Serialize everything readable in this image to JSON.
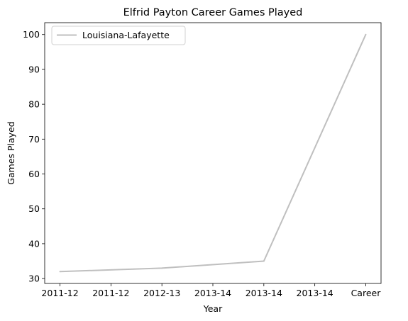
{
  "chart_data": {
    "type": "line",
    "title": "Elfrid Payton  Career Games Played",
    "xlabel": "Year",
    "ylabel": "Games Played",
    "x_tick_labels": [
      "2011-12",
      "2011-12",
      "2012-13",
      "2013-14",
      "2013-14",
      "2013-14",
      "Career"
    ],
    "y_ticks": [
      30,
      40,
      50,
      60,
      70,
      80,
      90,
      100
    ],
    "ylim": [
      28.6,
      103.4
    ],
    "grid": false,
    "legend_position": "upper-left",
    "series": [
      {
        "name": "Louisiana-Lafayette",
        "color": "#bfbfbf",
        "points": [
          {
            "x": 0,
            "y": 32
          },
          {
            "x": 2,
            "y": 33
          },
          {
            "x": 4,
            "y": 35
          },
          {
            "x": 6,
            "y": 100
          }
        ]
      }
    ]
  }
}
